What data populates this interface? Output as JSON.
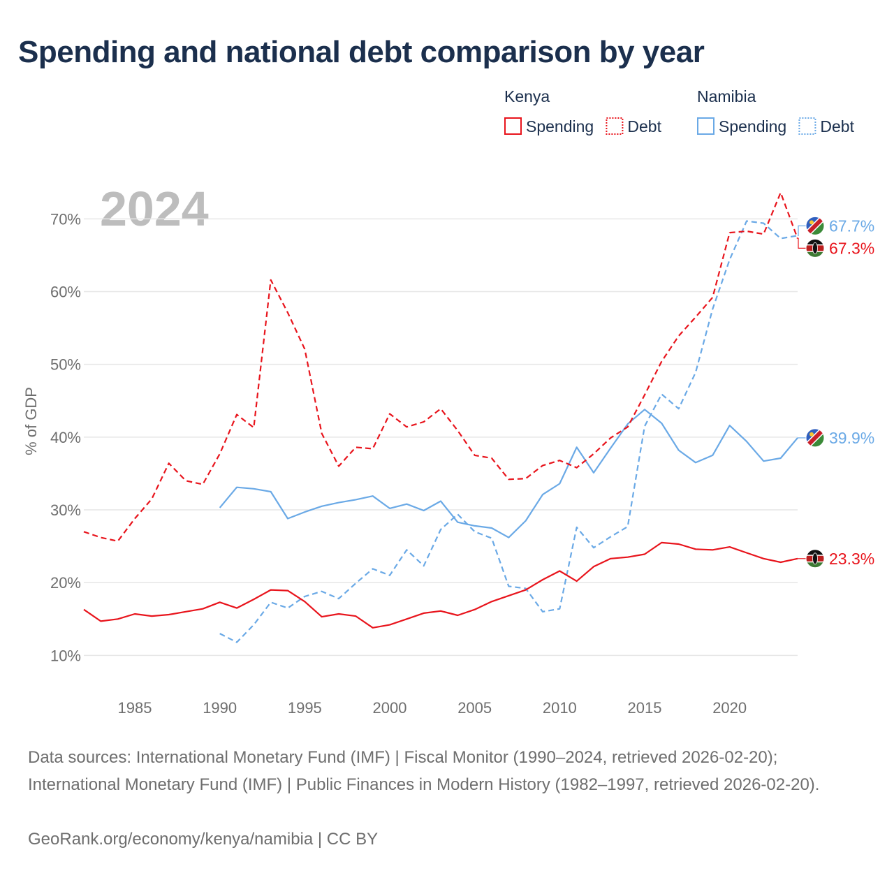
{
  "title": "Spending and national debt comparison by year",
  "year_label": "2024",
  "colors": {
    "kenya": "#e8141c",
    "namibia": "#6aa9e6",
    "text": "#1b2f4d",
    "axis": "#6e6e6e",
    "grid": "#e6e6e6",
    "year": "#bdbdbd"
  },
  "legend": {
    "groups": [
      {
        "country": "Kenya",
        "color": "#e8141c",
        "items": [
          {
            "label": "Spending",
            "style": "solid"
          },
          {
            "label": "Debt",
            "style": "dashed"
          }
        ]
      },
      {
        "country": "Namibia",
        "color": "#6aa9e6",
        "items": [
          {
            "label": "Spending",
            "style": "solid"
          },
          {
            "label": "Debt",
            "style": "dashed"
          }
        ]
      }
    ]
  },
  "chart_data": {
    "type": "line",
    "title": "Spending and national debt comparison by year",
    "ylabel": "% of GDP",
    "xlabel": "",
    "xlim": [
      1982,
      2024
    ],
    "ylim": [
      6,
      78
    ],
    "x_ticks": [
      1985,
      1990,
      1995,
      2000,
      2005,
      2010,
      2015,
      2020
    ],
    "y_ticks": [
      10,
      20,
      30,
      40,
      50,
      60,
      70
    ],
    "y_tick_labels": [
      "10%",
      "20%",
      "30%",
      "40%",
      "50%",
      "60%",
      "70%"
    ],
    "series": [
      {
        "name": "Kenya Debt",
        "country": "Kenya",
        "metric": "Debt",
        "style": "dashed",
        "color": "#e8141c",
        "x": [
          1982,
          1983,
          1984,
          1985,
          1986,
          1987,
          1988,
          1989,
          1990,
          1991,
          1992,
          1993,
          1994,
          1995,
          1996,
          1997,
          1998,
          1999,
          2000,
          2001,
          2002,
          2003,
          2004,
          2005,
          2006,
          2007,
          2008,
          2009,
          2010,
          2011,
          2012,
          2013,
          2014,
          2015,
          2016,
          2017,
          2018,
          2019,
          2020,
          2021,
          2022,
          2023,
          2024
        ],
        "values": [
          27.0,
          26.2,
          25.7,
          28.8,
          31.5,
          36.4,
          34.0,
          33.5,
          37.7,
          43.1,
          41.3,
          61.6,
          57.1,
          52.1,
          40.5,
          36.0,
          38.6,
          38.4,
          43.2,
          41.4,
          42.1,
          43.9,
          40.9,
          37.5,
          37.1,
          34.2,
          34.3,
          36.1,
          36.8,
          35.8,
          37.7,
          39.9,
          41.4,
          45.8,
          50.4,
          53.9,
          56.5,
          59.2,
          68.1,
          68.3,
          67.9,
          73.6,
          67.3
        ]
      },
      {
        "name": "Kenya Spending",
        "country": "Kenya",
        "metric": "Spending",
        "style": "solid",
        "color": "#e8141c",
        "x": [
          1982,
          1983,
          1984,
          1985,
          1986,
          1987,
          1988,
          1989,
          1990,
          1991,
          1992,
          1993,
          1994,
          1995,
          1996,
          1997,
          1998,
          1999,
          2000,
          2001,
          2002,
          2003,
          2004,
          2005,
          2006,
          2007,
          2008,
          2009,
          2010,
          2011,
          2012,
          2013,
          2014,
          2015,
          2016,
          2017,
          2018,
          2019,
          2020,
          2021,
          2022,
          2023,
          2024
        ],
        "values": [
          16.3,
          14.7,
          15.0,
          15.7,
          15.4,
          15.6,
          16.0,
          16.4,
          17.3,
          16.5,
          17.7,
          19.0,
          18.9,
          17.4,
          15.3,
          15.7,
          15.4,
          13.8,
          14.2,
          15.0,
          15.8,
          16.1,
          15.5,
          16.3,
          17.4,
          18.2,
          19.0,
          20.4,
          21.6,
          20.2,
          22.2,
          23.3,
          23.5,
          23.9,
          25.5,
          25.3,
          24.6,
          24.5,
          24.9,
          24.1,
          23.3,
          22.8,
          23.3
        ]
      },
      {
        "name": "Namibia Debt",
        "country": "Namibia",
        "metric": "Debt",
        "style": "dashed",
        "color": "#6aa9e6",
        "x": [
          1990,
          1991,
          1992,
          1993,
          1994,
          1995,
          1996,
          1997,
          1998,
          1999,
          2000,
          2001,
          2002,
          2003,
          2004,
          2005,
          2006,
          2007,
          2008,
          2009,
          2010,
          2011,
          2012,
          2013,
          2014,
          2015,
          2016,
          2017,
          2018,
          2019,
          2020,
          2021,
          2022,
          2023,
          2024
        ],
        "values": [
          13.0,
          11.8,
          14.2,
          17.3,
          16.5,
          18.1,
          18.8,
          17.8,
          19.9,
          21.9,
          21.0,
          24.5,
          22.3,
          27.3,
          29.4,
          27.0,
          26.1,
          19.5,
          19.2,
          16.0,
          16.4,
          27.6,
          24.8,
          26.3,
          27.7,
          41.5,
          45.9,
          43.9,
          48.9,
          57.6,
          64.4,
          69.7,
          69.4,
          67.3,
          67.7
        ]
      },
      {
        "name": "Namibia Spending",
        "country": "Namibia",
        "metric": "Spending",
        "style": "solid",
        "color": "#6aa9e6",
        "x": [
          1990,
          1991,
          1992,
          1993,
          1994,
          1995,
          1996,
          1997,
          1998,
          1999,
          2000,
          2001,
          2002,
          2003,
          2004,
          2005,
          2006,
          2007,
          2008,
          2009,
          2010,
          2011,
          2012,
          2013,
          2014,
          2015,
          2016,
          2017,
          2018,
          2019,
          2020,
          2021,
          2022,
          2023,
          2024
        ],
        "values": [
          30.3,
          33.1,
          32.9,
          32.5,
          28.8,
          29.7,
          30.5,
          31.0,
          31.4,
          31.9,
          30.2,
          30.8,
          29.9,
          31.2,
          28.3,
          27.8,
          27.5,
          26.2,
          28.5,
          32.1,
          33.6,
          38.6,
          35.1,
          38.5,
          41.8,
          43.8,
          41.9,
          38.2,
          36.5,
          37.5,
          41.6,
          39.4,
          36.7,
          37.1,
          39.9
        ]
      }
    ],
    "end_labels": [
      {
        "series": "Namibia Debt",
        "country": "Namibia",
        "text": "67.7%",
        "value": 67.7,
        "color": "#6aa9e6"
      },
      {
        "series": "Kenya Debt",
        "country": "Kenya",
        "text": "67.3%",
        "value": 67.3,
        "color": "#e8141c"
      },
      {
        "series": "Namibia Spending",
        "country": "Namibia",
        "text": "39.9%",
        "value": 39.9,
        "color": "#6aa9e6"
      },
      {
        "series": "Kenya Spending",
        "country": "Kenya",
        "text": "23.3%",
        "value": 23.3,
        "color": "#e8141c"
      }
    ]
  },
  "footer": {
    "sources": "Data sources: International Monetary Fund (IMF) | Fiscal Monitor (1990–2024, retrieved 2026-02-20); International Monetary Fund (IMF) | Public Finances in Modern History (1982–1997, retrieved 2026-02-20).",
    "credit": "GeoRank.org/economy/kenya/namibia | CC BY"
  }
}
